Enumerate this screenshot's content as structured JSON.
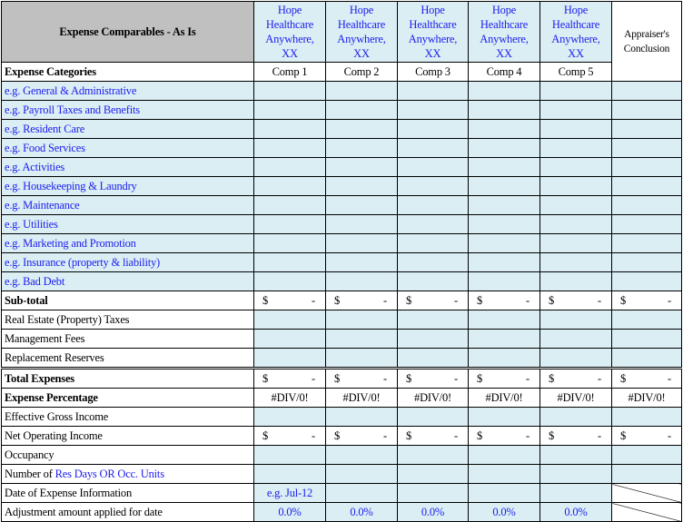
{
  "header": {
    "title": "Expense Comparables - As Is",
    "comp_name": "Hope Healthcare Anywhere, XX",
    "comps": [
      "Hope Healthcare Anywhere, XX",
      "Hope Healthcare Anywhere, XX",
      "Hope Healthcare Anywhere, XX",
      "Hope Healthcare Anywhere, XX",
      "Hope Healthcare Anywhere, XX"
    ],
    "conclusion": "Appraiser's Conclusion",
    "categories_label": "Expense Categories",
    "comp_labels": [
      "Comp 1",
      "Comp 2",
      "Comp 3",
      "Comp 4",
      "Comp 5"
    ]
  },
  "categories": [
    "e.g. General & Administrative",
    "e.g. Payroll Taxes and Benefits",
    "e.g. Resident Care",
    "e.g. Food Services",
    "e.g. Activities",
    "e.g. Housekeeping & Laundry",
    "e.g. Maintenance",
    "e.g. Utilities",
    "e.g. Marketing and Promotion",
    "e.g. Insurance (property & liability)",
    "e.g. Bad Debt"
  ],
  "subtotal": {
    "label": "Sub-total",
    "currency": "$",
    "value": "-"
  },
  "other_expenses": [
    "Real Estate (Property) Taxes",
    "Management Fees",
    "Replacement Reserves"
  ],
  "total": {
    "label": "Total Expenses",
    "currency": "$",
    "value": "-"
  },
  "expense_pct": {
    "label": "Expense Percentage",
    "value": "#DIV/0!"
  },
  "egi": {
    "label": "Effective Gross Income"
  },
  "noi": {
    "label": "Net Operating Income",
    "currency": "$",
    "value": "-"
  },
  "occupancy": {
    "label": "Occupancy"
  },
  "units": {
    "label_prefix": "Number of ",
    "label_blue": "Res Days OR Occ. Units"
  },
  "date": {
    "label": "Date of Expense Information",
    "comp1_value": "e.g. Jul-12"
  },
  "adjustment": {
    "label": "Adjustment amount applied for date",
    "values": [
      "0.0%",
      "0.0%",
      "0.0%",
      "0.0%",
      "0.0%"
    ]
  },
  "colors": {
    "fill": "#daeef3",
    "header_gray": "#c0c0c0",
    "link_blue": "#2020ee"
  }
}
